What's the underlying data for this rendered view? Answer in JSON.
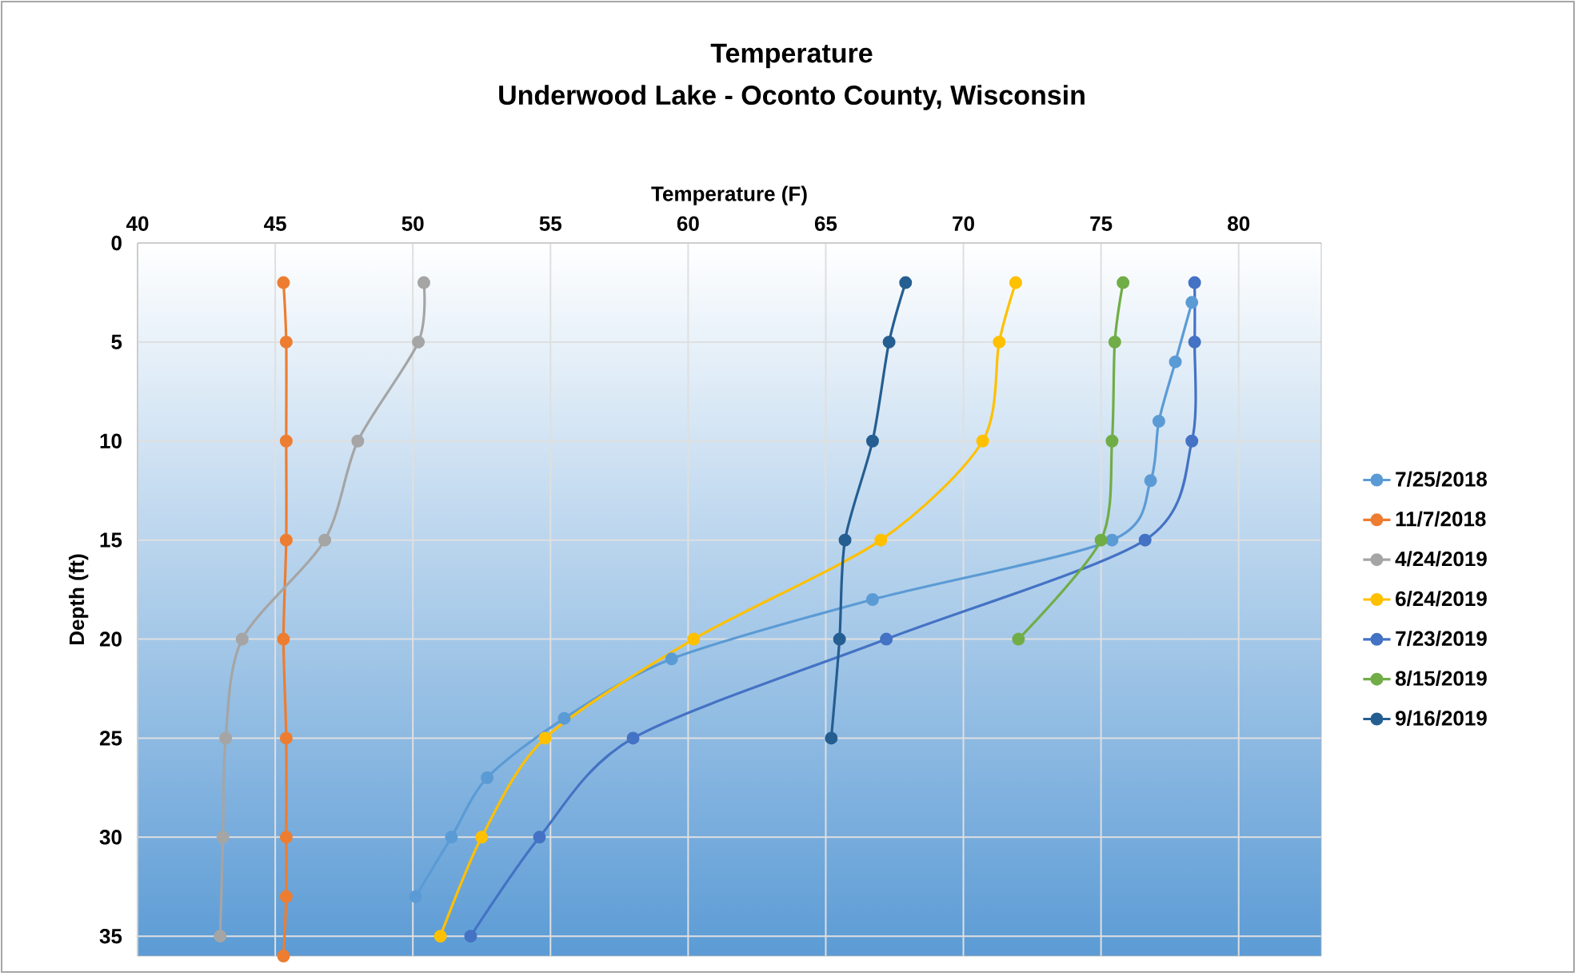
{
  "chart_data": {
    "type": "line",
    "title": "Temperature",
    "subtitle": "Underwood Lake - Oconto County, Wisconsin",
    "xlabel": "Temperature (F)",
    "ylabel": "Depth (ft)",
    "xlim": [
      40,
      83
    ],
    "xticks": [
      40,
      45,
      50,
      55,
      60,
      65,
      70,
      75,
      80
    ],
    "ylim": [
      36,
      0
    ],
    "yticks": [
      0,
      5,
      10,
      15,
      20,
      25,
      30,
      35
    ],
    "grid": true,
    "legend": "right",
    "marker": "circle",
    "line_style": "solid",
    "series": [
      {
        "name": "7/25/2018",
        "color": "#5b9bd5",
        "x": [
          78.3,
          77.7,
          77.1,
          76.8,
          75.4,
          66.7,
          59.4,
          55.5,
          52.7,
          51.4,
          50.1
        ],
        "values": [
          3,
          6,
          9,
          12,
          15,
          18,
          21,
          24,
          27,
          30,
          33
        ]
      },
      {
        "name": "11/7/2018",
        "color": "#ed7d31",
        "x": [
          45.3,
          45.4,
          45.4,
          45.4,
          45.3,
          45.4,
          45.4,
          45.4,
          45.3
        ],
        "values": [
          2,
          5,
          10,
          15,
          20,
          25,
          30,
          33,
          36
        ]
      },
      {
        "name": "4/24/2019",
        "color": "#a5a5a5",
        "x": [
          50.4,
          50.2,
          48.0,
          46.8,
          43.8,
          43.2,
          43.1,
          43.0
        ],
        "values": [
          2,
          5,
          10,
          15,
          20,
          25,
          30,
          35
        ]
      },
      {
        "name": "6/24/2019",
        "color": "#ffc000",
        "x": [
          71.9,
          71.3,
          70.7,
          67.0,
          60.2,
          54.8,
          52.5,
          51.0
        ],
        "values": [
          2,
          5,
          10,
          15,
          20,
          25,
          30,
          35
        ]
      },
      {
        "name": "7/23/2019",
        "color": "#4472c4",
        "x": [
          78.4,
          78.4,
          78.3,
          76.6,
          67.2,
          58.0,
          54.6,
          52.1
        ],
        "values": [
          2,
          5,
          10,
          15,
          20,
          25,
          30,
          35
        ]
      },
      {
        "name": "8/15/2019",
        "color": "#70ad47",
        "x": [
          75.8,
          75.5,
          75.4,
          75.0,
          72.0
        ],
        "values": [
          2,
          5,
          10,
          15,
          20
        ]
      },
      {
        "name": "9/16/2019",
        "color": "#255e91",
        "x": [
          67.9,
          67.3,
          66.7,
          65.7,
          65.5,
          65.2
        ],
        "values": [
          2,
          5,
          10,
          15,
          20,
          25
        ]
      }
    ]
  }
}
